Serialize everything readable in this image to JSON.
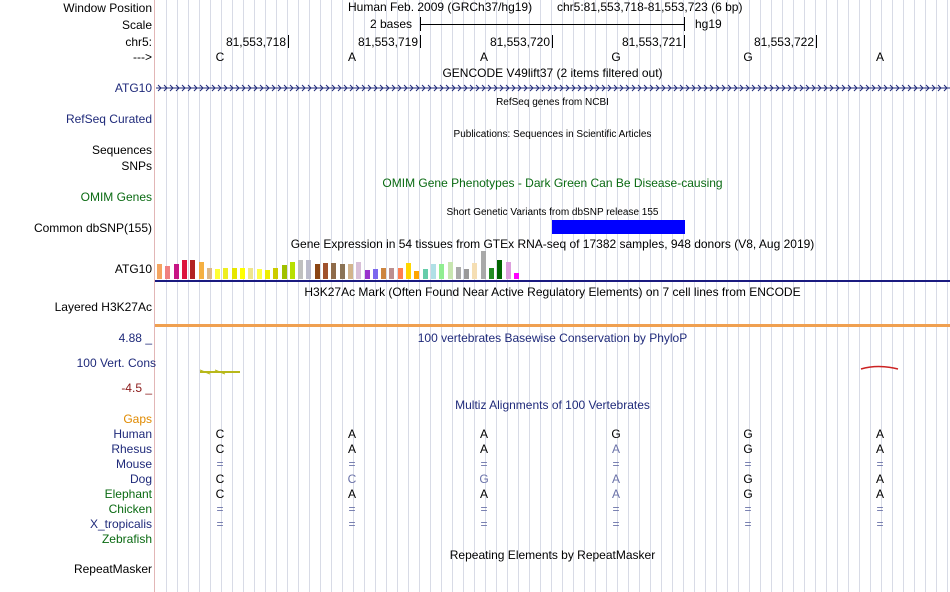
{
  "header": {
    "window_position_label": "Window Position",
    "scale_label": "Scale",
    "chrom_label": "chr5:",
    "arrow_label": "--->",
    "assembly": "Human Feb. 2009 (GRCh37/hg19)",
    "coords": "chr5:81,553,718-81,553,723 (6 bp)",
    "scale_text": "2 bases",
    "scale_db": "hg19",
    "positions": [
      "81,553,718",
      "81,553,719",
      "81,553,720",
      "81,553,721",
      "81,553,722"
    ],
    "bases": [
      "C",
      "A",
      "A",
      "G",
      "G",
      "A"
    ]
  },
  "tracks": {
    "gencode_title": "GENCODE V49lift37 (2 items filtered out)",
    "gene_label": "ATG10",
    "refseq_label": "RefSeq Curated",
    "refseq_title": "RefSeq genes from NCBI",
    "publications_title": "Publications: Sequences in Scientific Articles",
    "sequences_label": "Sequences",
    "snps_label": "SNPs",
    "omim_title": "OMIM Gene Phenotypes - Dark Green Can Be Disease-causing",
    "omim_label": "OMIM Genes",
    "dbsnp_title": "Short Genetic Variants from dbSNP release 155",
    "dbsnp_label": "Common dbSNP(155)",
    "gtex_title": "Gene Expression in 54 tissues from GTEx RNA-seq of 17382 samples, 948 donors (V8, Aug 2019)",
    "gtex_label": "ATG10",
    "h3k27_title": "H3K27Ac Mark (Often Found Near Active Regulatory Elements) on 7 cell lines from ENCODE",
    "h3k27_label": "Layered H3K27Ac",
    "phylop_title": "100 vertebrates Basewise Conservation by PhyloP",
    "phylop_max": "4.88 _",
    "phylop_label": "100 Vert. Cons",
    "phylop_min": "-4.5 _",
    "gaps_label": "Gaps",
    "multiz_title": "Multiz Alignments of 100 Vertebrates",
    "repeat_title": "Repeating Elements by RepeatMasker",
    "repeat_label": "RepeatMasker"
  },
  "alignment": {
    "species": [
      {
        "name": "Human",
        "bases": [
          "C",
          "A",
          "A",
          "G",
          "G",
          "A"
        ],
        "faded": [
          false,
          false,
          false,
          false,
          false,
          false
        ]
      },
      {
        "name": "Rhesus",
        "bases": [
          "C",
          "A",
          "A",
          "A",
          "G",
          "A"
        ],
        "faded": [
          false,
          false,
          false,
          true,
          false,
          false
        ]
      },
      {
        "name": "Mouse",
        "bases": [
          "=",
          "=",
          "=",
          "=",
          "=",
          "="
        ],
        "faded": [
          true,
          true,
          true,
          true,
          true,
          true
        ]
      },
      {
        "name": "Dog",
        "bases": [
          "C",
          "C",
          "G",
          "A",
          "G",
          "A"
        ],
        "faded": [
          false,
          true,
          true,
          true,
          false,
          false
        ]
      },
      {
        "name": "Elephant",
        "bases": [
          "C",
          "A",
          "A",
          "A",
          "G",
          "A"
        ],
        "faded": [
          false,
          false,
          false,
          true,
          false,
          false
        ]
      },
      {
        "name": "Chicken",
        "bases": [
          "=",
          "=",
          "=",
          "=",
          "=",
          "="
        ],
        "faded": [
          true,
          true,
          true,
          true,
          true,
          true
        ]
      },
      {
        "name": "X_tropicalis",
        "bases": [
          "=",
          "=",
          "=",
          "=",
          "=",
          "="
        ],
        "faded": [
          true,
          true,
          true,
          true,
          true,
          true
        ]
      },
      {
        "name": "Zebrafish",
        "bases": [
          "",
          "",
          "",
          "",
          "",
          ""
        ],
        "faded": [
          false,
          false,
          false,
          false,
          false,
          false
        ]
      }
    ]
  },
  "gtex_tissue_colors": [
    "#f4a460",
    "#f08080",
    "#c71585",
    "#dc143c",
    "#b22222",
    "#f5b041",
    "#deb887",
    "#ffff33",
    "#eeee22",
    "#e6e600",
    "#ffff00",
    "#f0e68c",
    "#ffff44",
    "#eeee00",
    "#cccc00",
    "#a0c000",
    "#b8e000",
    "#c0c0c0",
    "#bbbbcc",
    "#8b4513",
    "#a0522d",
    "#8f6b4a",
    "#8b7355",
    "#d2b48c",
    "#d8bfd8",
    "#9932cc",
    "#7b68ee",
    "#cd853f",
    "#bc8f8f",
    "#ff7f50",
    "#ffd700",
    "#ffa500",
    "#66cdaa",
    "#b0e0e6",
    "#90ee90",
    "#c8e6b0",
    "#aaaaaa",
    "#999999",
    "#f5deb3",
    "#a9a9a9",
    "#228b22",
    "#006400",
    "#dda0dd",
    "#ff00ff"
  ],
  "gtex_relative_levels": [
    0.8,
    0.7,
    0.8,
    1.0,
    1.0,
    0.9,
    0.6,
    0.55,
    0.6,
    0.6,
    0.6,
    0.6,
    0.55,
    0.5,
    0.6,
    0.75,
    0.9,
    1.0,
    1.0,
    0.8,
    0.85,
    0.85,
    0.8,
    0.8,
    0.9,
    0.5,
    0.55,
    0.6,
    0.6,
    0.6,
    0.85,
    0.45,
    0.55,
    0.8,
    0.8,
    0.9,
    0.65,
    0.55,
    0.85,
    1.5,
    0.6,
    1.0,
    0.9,
    0.3
  ],
  "colors": {
    "scale_box": "#0000ff",
    "h3k27_line": "#1a1a80",
    "h3k27_orange": "#f0a050",
    "phylop_left": "#b8b81a",
    "phylop_right": "#cc2222"
  }
}
